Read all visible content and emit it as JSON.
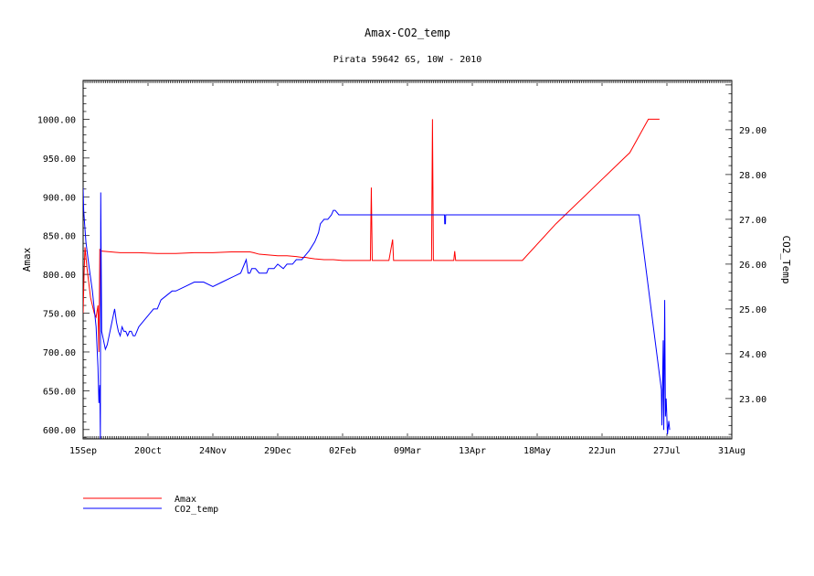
{
  "chart_data": {
    "type": "line",
    "title": "Amax-CO2_temp",
    "subtitle": "Pirata 59642 6S, 10W - 2010",
    "x_tick_labels": [
      "15Sep",
      "20Oct",
      "24Nov",
      "29Dec",
      "02Feb",
      "09Mar",
      "13Apr",
      "18May",
      "22Jun",
      "27Jul",
      "31Aug"
    ],
    "xlabel": "",
    "xlim_days": [
      0,
      350
    ],
    "left_axis": {
      "label": "Amax",
      "ylim": [
        588,
        1050
      ],
      "ticks": [
        600,
        650,
        700,
        750,
        800,
        850,
        900,
        950,
        1000
      ],
      "tick_labels": [
        "600.00",
        "650.00",
        "700.00",
        "750.00",
        "800.00",
        "850.00",
        "900.00",
        "950.00",
        "1000.00"
      ]
    },
    "right_axis": {
      "label": "CO2_Temp",
      "ylim": [
        22.1,
        30.1
      ],
      "ticks": [
        23,
        24,
        25,
        26,
        27,
        28,
        29
      ],
      "tick_labels": [
        "23.00",
        "24.00",
        "25.00",
        "26.00",
        "27.00",
        "28.00",
        "29.00"
      ]
    },
    "grid": false,
    "legend_position": "bottom-left",
    "series": [
      {
        "name": "Amax",
        "axis": "left",
        "color": "#ff0000",
        "x": [
          0,
          0.5,
          1,
          2,
          3,
          4,
          5,
          6,
          7,
          8,
          8.5,
          9,
          10,
          15,
          20,
          25,
          30,
          40,
          50,
          60,
          70,
          80,
          90,
          92,
          95,
          100,
          105,
          110,
          115,
          118,
          120,
          122,
          125,
          130,
          135,
          140,
          140.01,
          140.5,
          141,
          150,
          155,
          155.5,
          156,
          157,
          165,
          167,
          167.5,
          168,
          169,
          170,
          180,
          185,
          188,
          188.5,
          189,
          190,
          189.5,
          190,
          200,
          200.5,
          201,
          202,
          210,
          230,
          237,
          255,
          275,
          295,
          305,
          311
        ],
        "y": [
          750,
          800,
          835,
          810,
          790,
          770,
          760,
          750,
          745,
          760,
          700,
          832,
          830,
          829,
          828,
          828,
          828,
          827,
          827,
          828,
          828,
          829,
          829,
          828,
          826,
          825,
          824,
          824,
          823,
          822,
          822,
          821,
          820,
          819,
          819,
          818,
          818,
          818,
          818,
          818,
          818,
          912,
          818,
          818,
          818,
          845,
          818,
          818,
          818,
          818,
          818,
          818,
          818,
          1000,
          818,
          818,
          818,
          818,
          818,
          830,
          818,
          818,
          818,
          818,
          818,
          865,
          911,
          957,
          1000,
          1000
        ]
      },
      {
        "name": "CO2_temp",
        "axis": "right",
        "color": "#0000ff",
        "x": [
          0,
          0.3,
          0.8,
          1.5,
          3,
          5,
          7,
          8,
          8.5,
          9,
          9.3,
          9.5,
          10,
          11,
          12,
          13,
          14,
          15,
          16,
          17,
          18,
          19,
          20,
          21,
          22,
          23,
          24,
          25,
          26,
          27,
          28,
          29,
          30,
          32,
          34,
          36,
          38,
          40,
          42,
          45,
          48,
          50,
          55,
          60,
          65,
          70,
          75,
          80,
          85,
          88,
          89,
          90,
          91,
          92,
          93,
          95,
          97,
          99,
          100,
          103,
          105,
          108,
          110,
          113,
          115,
          118,
          120,
          122,
          125,
          127,
          128,
          130,
          132,
          134,
          135,
          136,
          138,
          140,
          142,
          145,
          150,
          160,
          170,
          180,
          190,
          195,
          195.1,
          195.5,
          195.6,
          200,
          210,
          220,
          230,
          240,
          250,
          260,
          270,
          280,
          300,
          312,
          312.3,
          313,
          313.3,
          313.8,
          314.2,
          314.6,
          315.3,
          316,
          316.5
        ],
        "y": [
          27.7,
          27.2,
          26.9,
          26.5,
          26.0,
          25.4,
          24.6,
          23.7,
          22.9,
          23.3,
          22.1,
          27.6,
          24.5,
          24.3,
          24.1,
          24.2,
          24.4,
          24.6,
          24.8,
          25.0,
          24.7,
          24.5,
          24.4,
          24.6,
          24.5,
          24.5,
          24.4,
          24.5,
          24.5,
          24.4,
          24.4,
          24.5,
          24.6,
          24.7,
          24.8,
          24.9,
          25.0,
          25.0,
          25.2,
          25.3,
          25.4,
          25.4,
          25.5,
          25.6,
          25.6,
          25.5,
          25.6,
          25.7,
          25.8,
          26.1,
          25.8,
          25.8,
          25.9,
          25.9,
          25.9,
          25.8,
          25.8,
          25.8,
          25.9,
          25.9,
          26.0,
          25.9,
          26.0,
          26.0,
          26.1,
          26.1,
          26.2,
          26.3,
          26.5,
          26.7,
          26.9,
          27.0,
          27.0,
          27.1,
          27.2,
          27.2,
          27.1,
          27.1,
          27.1,
          27.1,
          27.1,
          27.1,
          27.1,
          27.1,
          27.1,
          27.1,
          26.9,
          26.9,
          27.1,
          27.1,
          27.1,
          27.1,
          27.1,
          27.1,
          27.1,
          27.1,
          27.1,
          27.1,
          27.1,
          23.2,
          22.4,
          24.3,
          22.3,
          25.2,
          22.6,
          23.0,
          22.2,
          22.5,
          22.3
        ]
      }
    ]
  }
}
